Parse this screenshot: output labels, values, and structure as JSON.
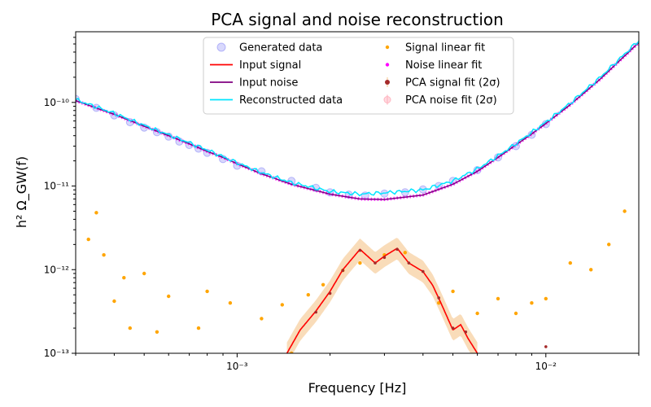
{
  "chart_data": {
    "type": "line",
    "title": "PCA signal and noise reconstruction",
    "xlabel": "Frequency [Hz]",
    "ylabel": "h² Ω_GW(f)",
    "x_scale": "log",
    "y_scale": "log",
    "xlim": [
      0.0003,
      0.02
    ],
    "ylim": [
      1e-13,
      7e-10
    ],
    "x_major_ticks": [
      {
        "value": 0.001,
        "label": "10⁻³"
      },
      {
        "value": 0.01,
        "label": "10⁻²"
      }
    ],
    "y_major_ticks": [
      {
        "value": 1e-13,
        "label": "10⁻¹³"
      },
      {
        "value": 1e-12,
        "label": "10⁻¹²"
      },
      {
        "value": 1e-11,
        "label": "10⁻¹¹"
      },
      {
        "value": 1e-10,
        "label": "10⁻¹⁰"
      }
    ],
    "legend": {
      "placement": "top-center",
      "columns": 2,
      "entries": [
        {
          "label": "Generated data",
          "marker": "circle-faded",
          "color": "#4d4df0"
        },
        {
          "label": "Input signal",
          "marker": "line",
          "color": "#ff0000"
        },
        {
          "label": "Input noise",
          "marker": "line",
          "color": "#800080"
        },
        {
          "label": "Reconstructed data",
          "marker": "line",
          "color": "#00e5ff"
        },
        {
          "label": "Signal linear fit",
          "marker": "dot",
          "color": "#ffa500"
        },
        {
          "label": "Noise linear fit",
          "marker": "dot",
          "color": "#ff00ff"
        },
        {
          "label": "PCA signal fit (2σ)",
          "marker": "errorbar-dot",
          "color": "#a52a2a"
        },
        {
          "label": "PCA noise fit (2σ)",
          "marker": "errorbar-circle",
          "color": "#ffb6c1"
        }
      ]
    },
    "series": [
      {
        "name": "Input noise",
        "color": "#800080",
        "x": [
          0.0003,
          0.0004,
          0.0005,
          0.0006,
          0.0007,
          0.0008,
          0.0009,
          0.001,
          0.0012,
          0.0015,
          0.002,
          0.0025,
          0.003,
          0.004,
          0.005,
          0.006,
          0.007,
          0.008,
          0.009,
          0.01,
          0.012,
          0.015,
          0.018,
          0.02
        ],
        "y": [
          1.05e-10,
          7.2e-11,
          5.2e-11,
          4e-11,
          3.2e-11,
          2.6e-11,
          2.2e-11,
          1.85e-11,
          1.4e-11,
          1.05e-11,
          8e-12,
          7e-12,
          6.9e-12,
          7.8e-12,
          1.05e-11,
          1.5e-11,
          2.2e-11,
          3.1e-11,
          4.2e-11,
          5.6e-11,
          9.4e-11,
          1.9e-10,
          3.6e-10,
          5.2e-10
        ]
      },
      {
        "name": "Reconstructed data",
        "color": "#00e5ff",
        "x": [
          0.0003,
          0.0004,
          0.0005,
          0.0006,
          0.0007,
          0.0008,
          0.0009,
          0.001,
          0.0012,
          0.0015,
          0.002,
          0.0025,
          0.003,
          0.004,
          0.005,
          0.006,
          0.007,
          0.008,
          0.009,
          0.01,
          0.012,
          0.015,
          0.018,
          0.02
        ],
        "y": [
          1.08e-10,
          7.4e-11,
          5.3e-11,
          4.1e-11,
          3.3e-11,
          2.7e-11,
          2.25e-11,
          1.9e-11,
          1.45e-11,
          1.1e-11,
          8.6e-12,
          8e-12,
          8.3e-12,
          9e-12,
          1.15e-11,
          1.6e-11,
          2.3e-11,
          3.2e-11,
          4.4e-11,
          5.8e-11,
          9.8e-11,
          2e-10,
          3.8e-10,
          5.5e-10
        ]
      },
      {
        "name": "Input signal",
        "color": "#ff0000",
        "x": [
          0.00145,
          0.0016,
          0.0018,
          0.002,
          0.0022,
          0.0025,
          0.0028,
          0.003,
          0.0033,
          0.0036,
          0.004,
          0.0043,
          0.0046,
          0.005,
          0.0053,
          0.0056,
          0.006
        ],
        "y": [
          1e-13,
          1.9e-13,
          3.2e-13,
          5.5e-13,
          1e-12,
          1.75e-12,
          1.2e-12,
          1.45e-12,
          1.8e-12,
          1.2e-12,
          9.5e-13,
          6.5e-13,
          3.8e-13,
          1.9e-13,
          2.2e-13,
          1.5e-13,
          1e-13
        ]
      },
      {
        "name": "Generated data",
        "color": "#4d4df0",
        "x": [
          0.0003,
          0.00035,
          0.0004,
          0.00045,
          0.0005,
          0.00055,
          0.0006,
          0.00065,
          0.0007,
          0.00075,
          0.0008,
          0.0009,
          0.001,
          0.0012,
          0.0015,
          0.0018,
          0.002,
          0.0023,
          0.0026,
          0.003,
          0.0035,
          0.004,
          0.0045,
          0.005,
          0.006,
          0.007,
          0.008,
          0.009,
          0.01
        ],
        "y": [
          1.1e-10,
          8.6e-11,
          7e-11,
          5.8e-11,
          5e-11,
          4.4e-11,
          3.9e-11,
          3.4e-11,
          3.1e-11,
          2.8e-11,
          2.5e-11,
          2.1e-11,
          1.75e-11,
          1.5e-11,
          1.15e-11,
          9.5e-12,
          8.4e-12,
          7.9e-12,
          7.7e-12,
          8.1e-12,
          8.4e-12,
          9.1e-12,
          1e-11,
          1.15e-11,
          1.55e-11,
          2.2e-11,
          3e-11,
          4.1e-11,
          5.5e-11
        ]
      },
      {
        "name": "Signal linear fit",
        "color": "#ffa500",
        "x": [
          0.00033,
          0.00035,
          0.00037,
          0.0004,
          0.00043,
          0.00045,
          0.0005,
          0.00055,
          0.0006,
          0.00075,
          0.0008,
          0.00095,
          0.0012,
          0.0014,
          0.0015,
          0.0017,
          0.0019,
          0.0022,
          0.0025,
          0.003,
          0.0035,
          0.0045,
          0.005,
          0.006,
          0.007,
          0.008,
          0.009,
          0.01,
          0.012,
          0.014,
          0.016,
          0.018
        ],
        "y": [
          2.3e-12,
          4.8e-12,
          1.5e-12,
          4.2e-13,
          8e-13,
          2e-13,
          9e-13,
          1.8e-13,
          4.8e-13,
          2e-13,
          5.5e-13,
          4e-13,
          2.6e-13,
          3.8e-13,
          1e-13,
          5e-13,
          6.6e-13,
          9.8e-13,
          1.2e-12,
          1.5e-12,
          1.6e-12,
          4e-13,
          5.5e-13,
          3e-13,
          4.5e-13,
          3e-13,
          4e-13,
          4.5e-13,
          1.2e-12,
          1e-12,
          2e-12,
          5e-12
        ]
      },
      {
        "name": "PCA signal fit (2σ)",
        "color": "#a52a2a",
        "x": [
          0.0018,
          0.002,
          0.0022,
          0.0025,
          0.0028,
          0.003,
          0.0033,
          0.0036,
          0.004,
          0.0045,
          0.005,
          0.0055,
          0.01
        ],
        "y": [
          3.1e-13,
          5.2e-13,
          9.8e-13,
          1.7e-12,
          1.2e-12,
          1.4e-12,
          1.75e-12,
          1.2e-12,
          9.5e-13,
          4.6e-13,
          2e-13,
          1.8e-13,
          1.2e-13
        ]
      }
    ]
  }
}
